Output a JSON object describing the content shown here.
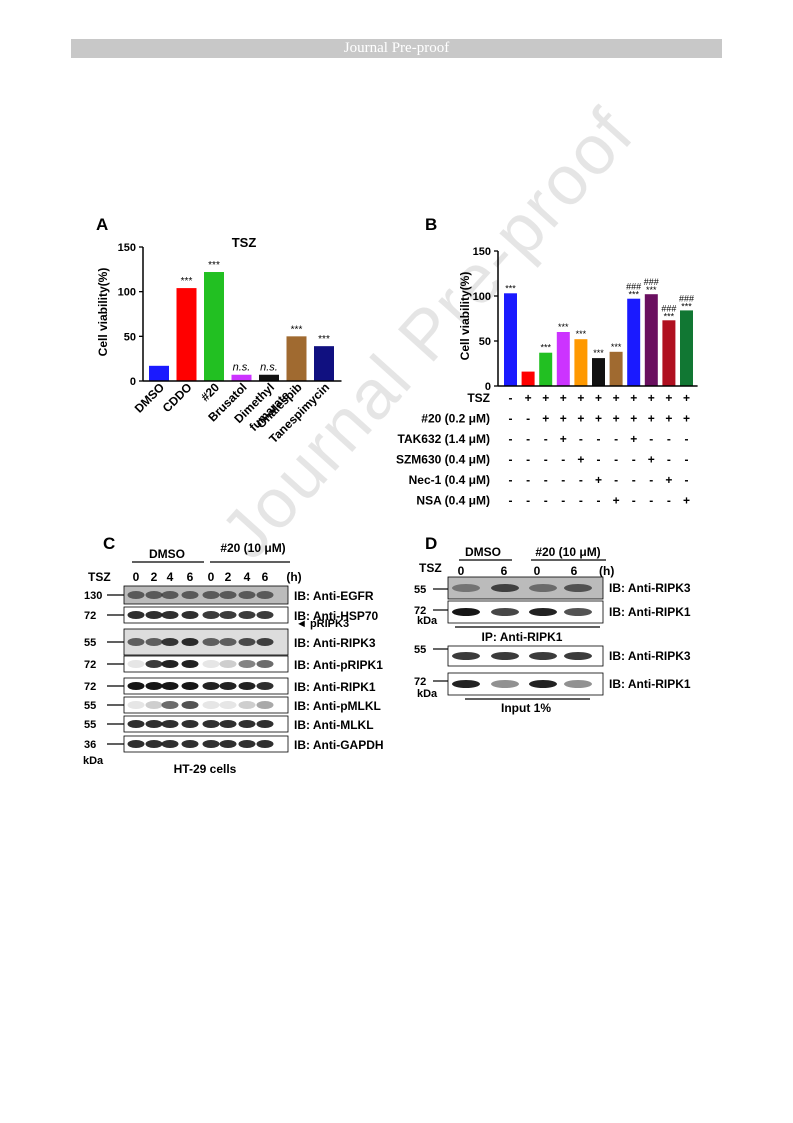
{
  "header": {
    "banner": "Journal Pre-proof"
  },
  "watermark": "Journal Pre-proof",
  "colors": {
    "blue": "#1a1aff",
    "red": "#ff0000",
    "green": "#22c022",
    "magenta": "#cc33ff",
    "black": "#111111",
    "brown": "#a06a30",
    "navy": "#101080",
    "orange": "#ff9900",
    "purple": "#6a1060",
    "darkred": "#b01020",
    "darkgreen": "#117733"
  },
  "panelA": {
    "letter": "A",
    "title": "TSZ",
    "chart_data": {
      "type": "bar",
      "title": "TSZ",
      "ylabel": "Cell viability(%)",
      "ylim": [
        0,
        150
      ],
      "yticks": [
        "0",
        "50",
        "100",
        "150"
      ],
      "categories": [
        "DMSO",
        "CDDO",
        "#20",
        "Brusatol",
        "Dimethyl fumarate",
        "Onalespib",
        "Tanespimycin"
      ],
      "tick_labels": [
        "DMSO",
        "CDDO",
        "#20",
        "Brusatol",
        "Dimethyl",
        "fumarate",
        "Onalespib",
        "Tanespimycin"
      ],
      "values": [
        17,
        104,
        122,
        7,
        7,
        50,
        39
      ],
      "annotations": [
        "",
        "***",
        "***",
        "n.s.",
        "n.s.",
        "***",
        "***"
      ],
      "bar_colors": [
        "blue",
        "red",
        "green",
        "magenta",
        "black",
        "brown",
        "navy"
      ]
    }
  },
  "panelB": {
    "letter": "B",
    "chart_data": {
      "type": "bar",
      "ylabel": "Cell viability(%)",
      "ylim": [
        0,
        150
      ],
      "yticks": [
        "0",
        "50",
        "100",
        "150"
      ],
      "values": [
        103,
        16,
        37,
        60,
        52,
        31,
        38,
        97,
        102,
        73,
        84
      ],
      "annotations_top": [
        "***",
        "",
        "***",
        "***",
        "***",
        "***",
        "***",
        "###",
        "###",
        "###",
        "###"
      ],
      "annotations_bottom": [
        "",
        "",
        "",
        "",
        "",
        "",
        "",
        "***",
        "***",
        "***",
        "***"
      ],
      "bar_colors": [
        "blue",
        "red",
        "green",
        "magenta",
        "orange",
        "black",
        "brown",
        "blue",
        "purple",
        "darkred",
        "darkgreen"
      ],
      "conditions": [
        {
          "label": "TSZ",
          "signs": [
            "-",
            "+",
            "+",
            "+",
            "+",
            "+",
            "+",
            "+",
            "+",
            "+",
            "+"
          ]
        },
        {
          "label": "#20 (0.2 μM)",
          "signs": [
            "-",
            "-",
            "+",
            "+",
            "+",
            "+",
            "+",
            "+",
            "+",
            "+",
            "+"
          ]
        },
        {
          "label": "TAK632 (1.4 μM)",
          "signs": [
            "-",
            "-",
            "-",
            "+",
            "-",
            "-",
            "-",
            "+",
            "-",
            "-",
            "-"
          ]
        },
        {
          "label": "SZM630 (0.4 μM)",
          "signs": [
            "-",
            "-",
            "-",
            "-",
            "+",
            "-",
            "-",
            "-",
            "+",
            "-",
            "-"
          ]
        },
        {
          "label": "Nec-1 (0.4 μM)",
          "signs": [
            "-",
            "-",
            "-",
            "-",
            "-",
            "+",
            "-",
            "-",
            "-",
            "+",
            "-"
          ]
        },
        {
          "label": "NSA (0.4 μM)",
          "signs": [
            "-",
            "-",
            "-",
            "-",
            "-",
            "-",
            "+",
            "-",
            "-",
            "-",
            "+"
          ]
        }
      ]
    }
  },
  "panelC": {
    "letter": "C",
    "group_dmso": "DMSO",
    "group_20": "#20 (10 μM)",
    "tsz_label": "TSZ",
    "timepoints": [
      "0",
      "2",
      "4",
      "6",
      "0",
      "2",
      "4",
      "6"
    ],
    "unit": "(h)",
    "caption": "HT-29 cells",
    "kda": "kDa",
    "blots": [
      {
        "marker": "130",
        "label": "IB: Anti-EGFR"
      },
      {
        "marker": "72",
        "label": "IB: Anti-HSP70"
      },
      {
        "marker": "55",
        "label": "IB: Anti-RIPK3",
        "extra": "◄ pRIPK3"
      },
      {
        "marker": "72",
        "label": "IB: Anti-pRIPK1"
      },
      {
        "marker": "72",
        "label": "IB: Anti-RIPK1"
      },
      {
        "marker": "55",
        "label": "IB: Anti-pMLKL"
      },
      {
        "marker": "55",
        "label": "IB: Anti-MLKL"
      },
      {
        "marker": "36",
        "label": "IB: Anti-GAPDH"
      }
    ]
  },
  "panelD": {
    "letter": "D",
    "group_dmso": "DMSO",
    "group_20": "#20 (10 μM)",
    "tsz_label": "TSZ",
    "timepoints": [
      "0",
      "6",
      "0",
      "6"
    ],
    "unit": "(h)",
    "kda": "kDa",
    "ip_label": "IP: Anti-RIPK1",
    "input_label": "Input 1%",
    "blots": [
      {
        "marker": "55",
        "label": "IB: Anti-RIPK3"
      },
      {
        "marker": "72",
        "label": "IB: Anti-RIPK1"
      },
      {
        "marker": "55",
        "label": "IB: Anti-RIPK3"
      },
      {
        "marker": "72",
        "label": "IB: Anti-RIPK1"
      }
    ]
  }
}
